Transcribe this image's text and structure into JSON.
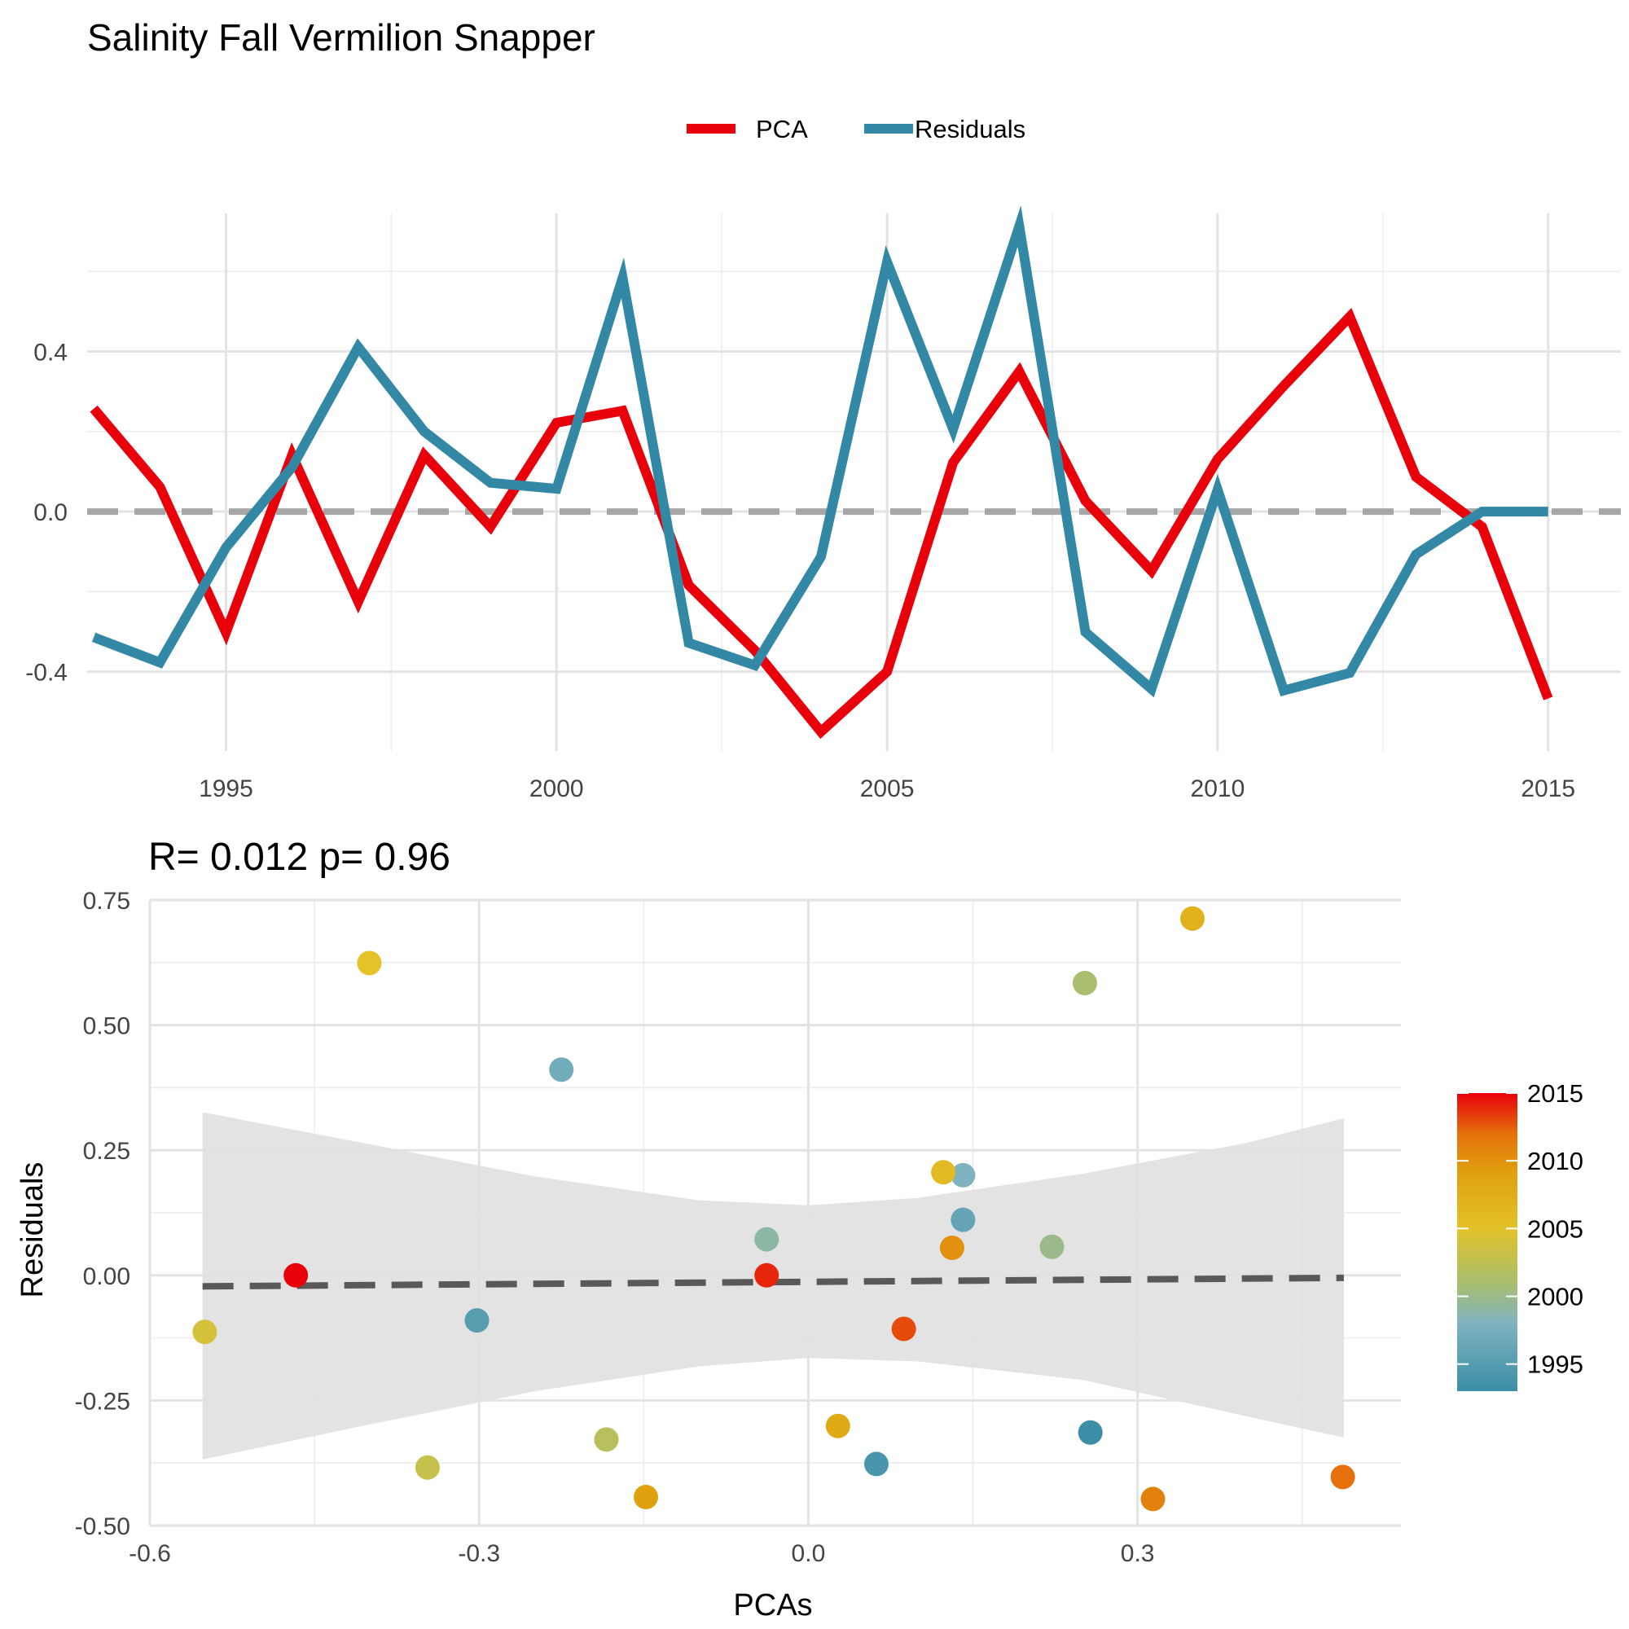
{
  "page": {
    "title": "Salinity Fall Vermilion Snapper"
  },
  "colors": {
    "pca": "#e8000b",
    "residuals": "#3389a5",
    "zero_line": "#a6a6a6",
    "fit_line": "#595959",
    "band": "#e0e0e0"
  },
  "chart_data": [
    {
      "type": "line",
      "title": "Salinity Fall Vermilion Snapper",
      "xlabel": "",
      "ylabel": "",
      "xlim": [
        1992.9,
        2016.1
      ],
      "ylim": [
        -0.598,
        0.745
      ],
      "x_ticks": [
        1995,
        2000,
        2005,
        2010,
        2015
      ],
      "y_ticks": [
        -0.4,
        0.0,
        0.4
      ],
      "y_tick_labels": [
        "-0.4",
        "0.0",
        "0.4"
      ],
      "grid": true,
      "legend_position": "top",
      "reference_line": {
        "y": 0.0,
        "style": "dashed"
      },
      "x": [
        1993,
        1994,
        1995,
        1996,
        1997,
        1998,
        1999,
        2000,
        2001,
        2002,
        2003,
        2004,
        2005,
        2006,
        2007,
        2008,
        2009,
        2010,
        2011,
        2012,
        2013,
        2014,
        2015
      ],
      "series": [
        {
          "name": "PCA",
          "values": [
            0.257,
            0.062,
            -0.302,
            0.141,
            -0.225,
            0.141,
            -0.038,
            0.222,
            0.252,
            -0.184,
            -0.347,
            -0.55,
            -0.4,
            0.123,
            0.35,
            0.027,
            -0.148,
            0.131,
            0.314,
            0.487,
            0.087,
            -0.038,
            -0.467
          ]
        },
        {
          "name": "Residuals",
          "values": [
            -0.314,
            -0.377,
            -0.09,
            0.111,
            0.411,
            0.2,
            0.072,
            0.057,
            0.584,
            -0.328,
            -0.384,
            -0.113,
            0.624,
            0.206,
            0.713,
            -0.301,
            -0.443,
            0.055,
            -0.447,
            -0.403,
            -0.107,
            0.0,
            0.0
          ]
        }
      ]
    },
    {
      "type": "scatter",
      "title": "",
      "annotation": "R= 0.012  p= 0.96",
      "xlabel": "PCAs",
      "ylabel": "Residuals",
      "xlim": [
        -0.6,
        0.54
      ],
      "ylim": [
        -0.5,
        0.75
      ],
      "x_ticks": [
        -0.6,
        -0.3,
        0.0,
        0.3
      ],
      "x_tick_labels": [
        "-0.6",
        "-0.3",
        "0.0",
        "0.3"
      ],
      "y_ticks": [
        -0.5,
        -0.25,
        0.0,
        0.25,
        0.5,
        0.75
      ],
      "y_tick_labels": [
        "-0.50",
        "-0.25",
        "0.00",
        "0.25",
        "0.50",
        "0.75"
      ],
      "grid": true,
      "legend_position": "right",
      "colorbar": {
        "min": 1993,
        "max": 2015,
        "ticks": [
          1995,
          2000,
          2005,
          2010,
          2015
        ],
        "stops": [
          {
            "value": 1993,
            "color": "#3b8ea6"
          },
          {
            "value": 1998,
            "color": "#7fb3c0"
          },
          {
            "value": 2001,
            "color": "#a9be6e"
          },
          {
            "value": 2005,
            "color": "#e3c22a"
          },
          {
            "value": 2009,
            "color": "#dfa20e"
          },
          {
            "value": 2012,
            "color": "#e5700c"
          },
          {
            "value": 2015,
            "color": "#e8000b"
          }
        ]
      },
      "fit_line": {
        "x": [
          -0.552,
          0.488
        ],
        "y": [
          -0.022,
          -0.005
        ]
      },
      "confidence_band": {
        "x": [
          -0.552,
          -0.4,
          -0.25,
          -0.1,
          0.0,
          0.1,
          0.25,
          0.4,
          0.488
        ],
        "upper": [
          0.326,
          0.262,
          0.198,
          0.15,
          0.14,
          0.155,
          0.203,
          0.265,
          0.314
        ],
        "lower": [
          -0.368,
          -0.298,
          -0.232,
          -0.182,
          -0.165,
          -0.172,
          -0.209,
          -0.282,
          -0.324
        ]
      },
      "points": [
        {
          "year": 1993,
          "x": 0.257,
          "y": -0.314
        },
        {
          "year": 1994,
          "x": 0.062,
          "y": -0.377
        },
        {
          "year": 1995,
          "x": -0.302,
          "y": -0.09
        },
        {
          "year": 1996,
          "x": 0.141,
          "y": 0.111
        },
        {
          "year": 1997,
          "x": -0.225,
          "y": 0.411
        },
        {
          "year": 1998,
          "x": 0.141,
          "y": 0.2
        },
        {
          "year": 1999,
          "x": -0.038,
          "y": 0.072
        },
        {
          "year": 2000,
          "x": 0.222,
          "y": 0.057
        },
        {
          "year": 2001,
          "x": 0.252,
          "y": 0.584
        },
        {
          "year": 2002,
          "x": -0.184,
          "y": -0.328
        },
        {
          "year": 2003,
          "x": -0.347,
          "y": -0.384
        },
        {
          "year": 2004,
          "x": -0.55,
          "y": -0.113
        },
        {
          "year": 2005,
          "x": -0.4,
          "y": 0.624
        },
        {
          "year": 2006,
          "x": 0.123,
          "y": 0.206
        },
        {
          "year": 2007,
          "x": 0.35,
          "y": 0.713
        },
        {
          "year": 2008,
          "x": 0.027,
          "y": -0.301
        },
        {
          "year": 2009,
          "x": -0.148,
          "y": -0.443
        },
        {
          "year": 2010,
          "x": 0.131,
          "y": 0.055
        },
        {
          "year": 2011,
          "x": 0.314,
          "y": -0.447
        },
        {
          "year": 2012,
          "x": 0.487,
          "y": -0.403
        },
        {
          "year": 2013,
          "x": 0.087,
          "y": -0.107
        },
        {
          "year": 2014,
          "x": -0.038,
          "y": 0.0
        },
        {
          "year": 2015,
          "x": -0.467,
          "y": 0.0
        }
      ]
    }
  ]
}
